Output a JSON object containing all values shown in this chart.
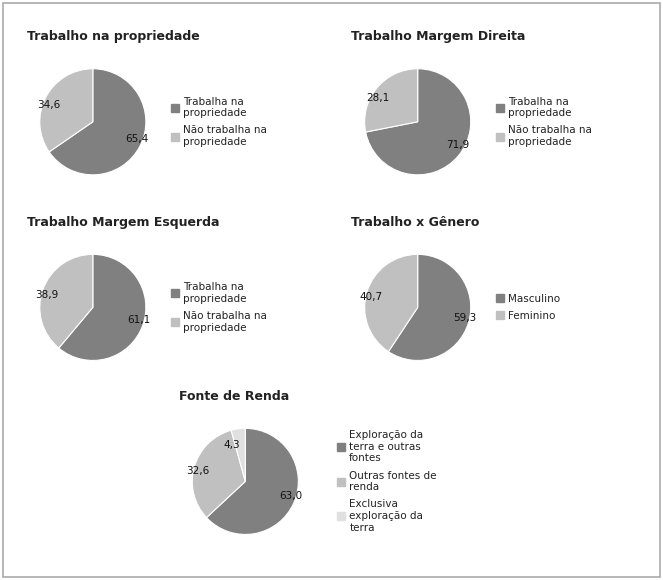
{
  "chart1": {
    "title": "Trabalho na propriedade",
    "values": [
      65.4,
      34.6
    ],
    "labels": [
      "65,4",
      "34,6"
    ],
    "colors": [
      "#808080",
      "#c0c0c0"
    ],
    "legend": [
      "Trabalha na\npropriedade",
      "Não trabalha na\npropriedade"
    ],
    "startangle": 90
  },
  "chart2": {
    "title": "Trabalho Margem Direita",
    "values": [
      71.9,
      28.1
    ],
    "labels": [
      "71,9",
      "28,1"
    ],
    "colors": [
      "#808080",
      "#c0c0c0"
    ],
    "legend": [
      "Trabalha na\npropriedade",
      "Não trabalha na\npropriedade"
    ],
    "startangle": 90
  },
  "chart3": {
    "title": "Trabalho Margem Esquerda",
    "values": [
      61.1,
      38.9
    ],
    "labels": [
      "61,1",
      "38,9"
    ],
    "colors": [
      "#808080",
      "#c0c0c0"
    ],
    "legend": [
      "Trabalha na\npropriedade",
      "Não trabalha na\npropriedade"
    ],
    "startangle": 90
  },
  "chart4": {
    "title": "Trabalho x Gênero",
    "values": [
      59.3,
      40.7
    ],
    "labels": [
      "59,3",
      "40,7"
    ],
    "colors": [
      "#808080",
      "#c0c0c0"
    ],
    "legend": [
      "Masculino",
      "Feminino"
    ],
    "startangle": 90
  },
  "chart5": {
    "title": "Fonte de Renda",
    "values": [
      63.0,
      32.6,
      4.3
    ],
    "labels": [
      "63,0",
      "32,6",
      "4,3"
    ],
    "colors": [
      "#808080",
      "#c0c0c0",
      "#e0e0e0"
    ],
    "legend": [
      "Exploração da\nterra e outras\nfontes",
      "Outras fontes de\nrenda",
      "Exclusiva\nexploração da\nterra"
    ],
    "startangle": 90
  },
  "background_color": "#ffffff",
  "border_color": "#aaaaaa",
  "text_color": "#222222",
  "font_size_title": 9,
  "font_size_label": 7.5,
  "font_size_legend": 7.5
}
